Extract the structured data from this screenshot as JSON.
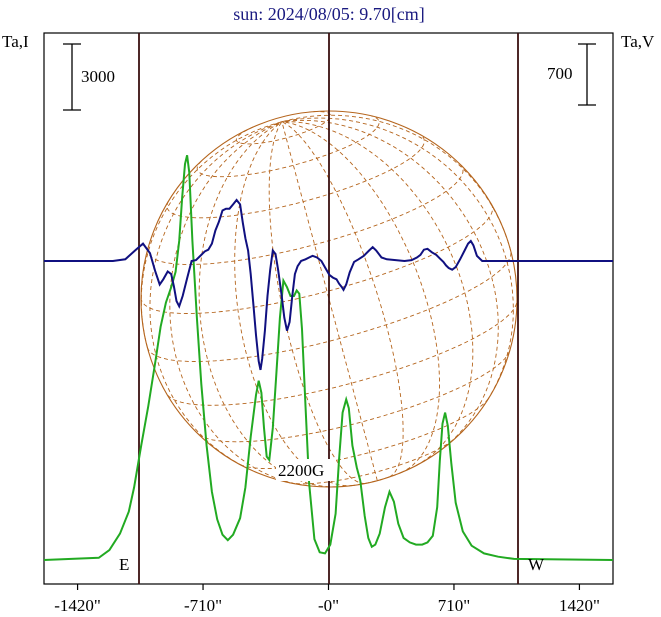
{
  "chart_data": {
    "type": "line",
    "title": "sun: 2024/08/05: 9.70[cm]",
    "left_axis_label": "Ta,I",
    "right_axis_label": "Ta,V",
    "x_ticks": [
      "-1420\"",
      "-710\"",
      "-0\"",
      "710\"",
      "1420\""
    ],
    "x_tick_values": [
      -1420,
      -710,
      0,
      710,
      1420
    ],
    "xlim": [
      -1610,
      1610
    ],
    "scale_bar_I": {
      "label": "3000",
      "value": 3000
    },
    "scale_bar_V": {
      "label": "700",
      "value": 700
    },
    "limb_markers": [
      {
        "label": "E",
        "x": -1070
      },
      {
        "label": "W",
        "x": 1070
      }
    ],
    "annotation": {
      "label": "2200G",
      "x": 0
    },
    "grid": false,
    "colors": {
      "intensity": "#22aa22",
      "polarization": "#101080",
      "sun_grid": "#b5651d",
      "limb_lines": "#3a1010",
      "title": "#1a1a80"
    },
    "series": [
      {
        "key": "I",
        "points": [
          [
            -1610,
            0
          ],
          [
            -1300,
            100
          ],
          [
            -1240,
            450
          ],
          [
            -1180,
            1200
          ],
          [
            -1130,
            2200
          ],
          [
            -1100,
            3300
          ],
          [
            -1060,
            5200
          ],
          [
            -1020,
            7000
          ],
          [
            -980,
            9000
          ],
          [
            -950,
            10600
          ],
          [
            -920,
            11700
          ],
          [
            -890,
            12400
          ],
          [
            -865,
            13100
          ],
          [
            -845,
            14500
          ],
          [
            -828,
            16500
          ],
          [
            -812,
            18000
          ],
          [
            -800,
            18400
          ],
          [
            -788,
            17600
          ],
          [
            -770,
            14500
          ],
          [
            -745,
            11000
          ],
          [
            -720,
            8000
          ],
          [
            -690,
            5200
          ],
          [
            -660,
            3100
          ],
          [
            -630,
            1850
          ],
          [
            -600,
            1150
          ],
          [
            -570,
            900
          ],
          [
            -540,
            1150
          ],
          [
            -500,
            1900
          ],
          [
            -470,
            3300
          ],
          [
            -440,
            5600
          ],
          [
            -410,
            7500
          ],
          [
            -395,
            8150
          ],
          [
            -380,
            7600
          ],
          [
            -365,
            6000
          ],
          [
            -350,
            4700
          ],
          [
            -335,
            4550
          ],
          [
            -315,
            6000
          ],
          [
            -295,
            8500
          ],
          [
            -275,
            11000
          ],
          [
            -255,
            12700
          ],
          [
            -235,
            12400
          ],
          [
            -215,
            12000
          ],
          [
            -195,
            12000
          ],
          [
            -180,
            12250
          ],
          [
            -165,
            12100
          ],
          [
            -150,
            10500
          ],
          [
            -130,
            7000
          ],
          [
            -110,
            3500
          ],
          [
            -80,
            950
          ],
          [
            -50,
            350
          ],
          [
            -20,
            300
          ],
          [
            10,
            700
          ],
          [
            40,
            2100
          ],
          [
            60,
            4600
          ],
          [
            80,
            6700
          ],
          [
            100,
            7300
          ],
          [
            115,
            6900
          ],
          [
            135,
            5200
          ],
          [
            160,
            4200
          ],
          [
            180,
            3600
          ],
          [
            205,
            2000
          ],
          [
            225,
            1000
          ],
          [
            245,
            600
          ],
          [
            265,
            700
          ],
          [
            290,
            1200
          ],
          [
            320,
            2400
          ],
          [
            345,
            3100
          ],
          [
            370,
            2650
          ],
          [
            395,
            1650
          ],
          [
            425,
            1000
          ],
          [
            460,
            800
          ],
          [
            495,
            700
          ],
          [
            530,
            700
          ],
          [
            560,
            800
          ],
          [
            590,
            1100
          ],
          [
            615,
            2400
          ],
          [
            630,
            4500
          ],
          [
            645,
            6200
          ],
          [
            660,
            6700
          ],
          [
            675,
            6100
          ],
          [
            695,
            4400
          ],
          [
            720,
            2600
          ],
          [
            760,
            1300
          ],
          [
            810,
            650
          ],
          [
            880,
            300
          ],
          [
            960,
            150
          ],
          [
            1050,
            50
          ],
          [
            1610,
            0
          ]
        ]
      },
      {
        "key": "V",
        "points": [
          [
            -1610,
            0
          ],
          [
            -1220,
            0
          ],
          [
            -1150,
            20
          ],
          [
            -1090,
            130
          ],
          [
            -1050,
            200
          ],
          [
            -1010,
            90
          ],
          [
            -980,
            -120
          ],
          [
            -955,
            -270
          ],
          [
            -935,
            -210
          ],
          [
            -910,
            -120
          ],
          [
            -890,
            -150
          ],
          [
            -875,
            -290
          ],
          [
            -860,
            -460
          ],
          [
            -845,
            -520
          ],
          [
            -825,
            -400
          ],
          [
            -800,
            -200
          ],
          [
            -775,
            0
          ],
          [
            -750,
            10
          ],
          [
            -720,
            70
          ],
          [
            -700,
            110
          ],
          [
            -680,
            130
          ],
          [
            -660,
            200
          ],
          [
            -640,
            350
          ],
          [
            -620,
            450
          ],
          [
            -600,
            580
          ],
          [
            -580,
            600
          ],
          [
            -560,
            600
          ],
          [
            -540,
            650
          ],
          [
            -520,
            700
          ],
          [
            -500,
            650
          ],
          [
            -485,
            440
          ],
          [
            -470,
            260
          ],
          [
            -455,
            120
          ],
          [
            -440,
            -150
          ],
          [
            -425,
            -500
          ],
          [
            -410,
            -850
          ],
          [
            -395,
            -1150
          ],
          [
            -385,
            -1250
          ],
          [
            -375,
            -1120
          ],
          [
            -360,
            -800
          ],
          [
            -345,
            -400
          ],
          [
            -330,
            -100
          ],
          [
            -315,
            120
          ],
          [
            -300,
            80
          ],
          [
            -285,
            -100
          ],
          [
            -265,
            -400
          ],
          [
            -250,
            -650
          ],
          [
            -235,
            -800
          ],
          [
            -220,
            -700
          ],
          [
            -205,
            -400
          ],
          [
            -190,
            -150
          ],
          [
            -175,
            -60
          ],
          [
            -155,
            0
          ],
          [
            -130,
            20
          ],
          [
            -110,
            40
          ],
          [
            -90,
            60
          ],
          [
            -65,
            40
          ],
          [
            -40,
            0
          ],
          [
            -15,
            -90
          ],
          [
            5,
            -160
          ],
          [
            25,
            -190
          ],
          [
            45,
            -210
          ],
          [
            60,
            -260
          ],
          [
            75,
            -300
          ],
          [
            85,
            -330
          ],
          [
            100,
            -270
          ],
          [
            120,
            -130
          ],
          [
            145,
            -10
          ],
          [
            170,
            20
          ],
          [
            200,
            60
          ],
          [
            230,
            120
          ],
          [
            250,
            160
          ],
          [
            270,
            120
          ],
          [
            300,
            40
          ],
          [
            330,
            20
          ],
          [
            380,
            10
          ],
          [
            430,
            0
          ],
          [
            470,
            10
          ],
          [
            500,
            40
          ],
          [
            520,
            70
          ],
          [
            540,
            130
          ],
          [
            560,
            140
          ],
          [
            585,
            100
          ],
          [
            610,
            70
          ],
          [
            630,
            30
          ],
          [
            650,
            -10
          ],
          [
            665,
            -50
          ],
          [
            680,
            -80
          ],
          [
            700,
            -100
          ],
          [
            720,
            -70
          ],
          [
            745,
            20
          ],
          [
            770,
            120
          ],
          [
            790,
            200
          ],
          [
            805,
            230
          ],
          [
            820,
            180
          ],
          [
            840,
            60
          ],
          [
            870,
            0
          ],
          [
            1000,
            0
          ],
          [
            1100,
            0
          ],
          [
            1610,
            0
          ]
        ]
      }
    ]
  }
}
